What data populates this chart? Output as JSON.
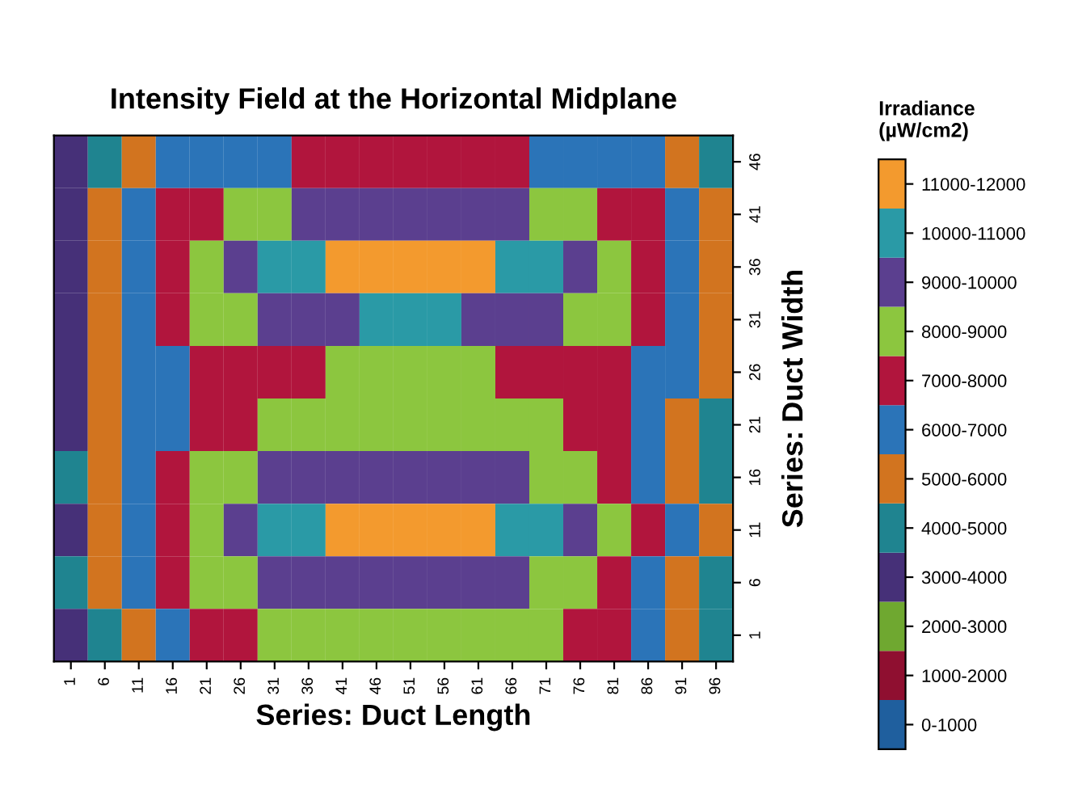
{
  "chart_data": {
    "type": "heatmap",
    "title": "Intensity Field at the Horizontal Midplane",
    "xlabel": "Series: Duct Length",
    "ylabel": "Series: Duct Width",
    "clabel": "Irradiance\n(µW/cm2)",
    "categories": [
      "1",
      "6",
      "11",
      "16",
      "21",
      "26",
      "31",
      "36",
      "41",
      "46",
      "51",
      "56",
      "61",
      "66",
      "71",
      "76",
      "81",
      "86",
      "91",
      "96"
    ],
    "y_categories": [
      "46",
      "41",
      "36",
      "31",
      "26",
      "21",
      "16",
      "11",
      "6",
      "1"
    ],
    "cells": [
      [
        3500,
        4500,
        5500,
        6500,
        6500,
        6500,
        6500,
        7500,
        7500,
        7500,
        7500,
        7500,
        7500,
        7500,
        6500,
        6500,
        6500,
        6500,
        5500,
        4500
      ],
      [
        3500,
        5500,
        6500,
        7500,
        7500,
        8500,
        8500,
        9500,
        9500,
        9500,
        9500,
        9500,
        9500,
        9500,
        8500,
        8500,
        7500,
        7500,
        6500,
        5500
      ],
      [
        3500,
        5500,
        6500,
        7500,
        8500,
        9500,
        10500,
        10500,
        11500,
        11500,
        11500,
        11500,
        11500,
        10500,
        10500,
        9500,
        8500,
        7500,
        6500,
        5500
      ],
      [
        3500,
        5500,
        6500,
        7500,
        8500,
        8500,
        9500,
        9500,
        9500,
        10500,
        10500,
        10500,
        9500,
        9500,
        9500,
        8500,
        8500,
        7500,
        6500,
        5500
      ],
      [
        3500,
        5500,
        6500,
        6500,
        7500,
        7500,
        7500,
        7500,
        8500,
        8500,
        8500,
        8500,
        8500,
        7500,
        7500,
        7500,
        7500,
        6500,
        6500,
        5500
      ],
      [
        3500,
        5500,
        6500,
        6500,
        7500,
        7500,
        8500,
        8500,
        8500,
        8500,
        8500,
        8500,
        8500,
        8500,
        8500,
        7500,
        7500,
        6500,
        5500,
        4500
      ],
      [
        4500,
        5500,
        6500,
        7500,
        8500,
        8500,
        9500,
        9500,
        9500,
        9500,
        9500,
        9500,
        9500,
        9500,
        8500,
        8500,
        7500,
        6500,
        5500,
        4500
      ],
      [
        3500,
        5500,
        6500,
        7500,
        8500,
        9500,
        10500,
        10500,
        11500,
        11500,
        11500,
        11500,
        11500,
        10500,
        10500,
        9500,
        8500,
        7500,
        6500,
        5500
      ],
      [
        4500,
        5500,
        6500,
        7500,
        8500,
        8500,
        9500,
        9500,
        9500,
        9500,
        9500,
        9500,
        9500,
        9500,
        8500,
        8500,
        7500,
        6500,
        5500,
        4500
      ],
      [
        3500,
        4500,
        5500,
        6500,
        7500,
        7500,
        8500,
        8500,
        8500,
        8500,
        8500,
        8500,
        8500,
        8500,
        8500,
        7500,
        7500,
        6500,
        5500,
        4500
      ]
    ],
    "clim": [
      0,
      12000
    ],
    "colors": [
      "#1f5f9e",
      "#8f0f30",
      "#6fa830",
      "#463078",
      "#1f8490",
      "#d2741f",
      "#2b74b8",
      "#b1153d",
      "#8cc63f",
      "#5b3f8f",
      "#2a9aa6",
      "#f39a2e"
    ],
    "cticks": [
      {
        "value": 11500,
        "label": "11000-12000"
      },
      {
        "value": 10500,
        "label": "10000-11000"
      },
      {
        "value": 9500,
        "label": "9000-10000"
      },
      {
        "value": 8500,
        "label": "8000-9000"
      },
      {
        "value": 7500,
        "label": "7000-8000"
      },
      {
        "value": 6500,
        "label": "6000-7000"
      },
      {
        "value": 5500,
        "label": "5000-6000"
      },
      {
        "value": 4500,
        "label": "4000-5000"
      },
      {
        "value": 3500,
        "label": "3000-4000"
      },
      {
        "value": 2500,
        "label": "2000-3000"
      },
      {
        "value": 1500,
        "label": "1000-2000"
      },
      {
        "value": 500,
        "label": "0-1000"
      }
    ]
  }
}
